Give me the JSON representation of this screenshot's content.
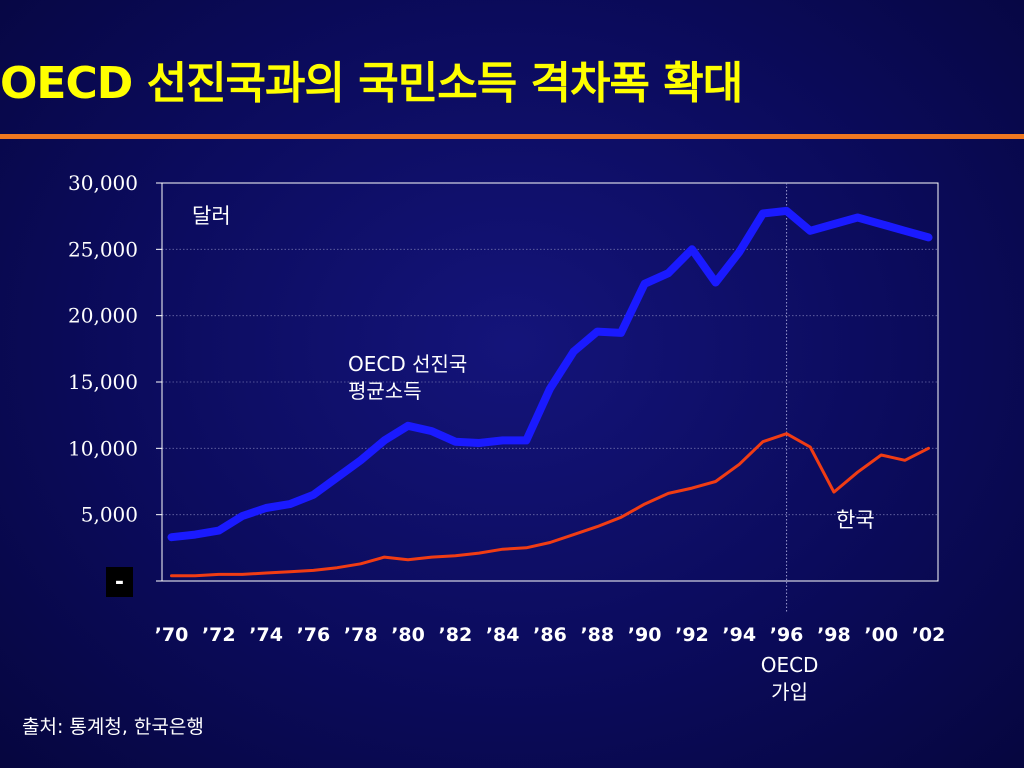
{
  "slide": {
    "title": "OECD 선진국과의 국민소득 격차폭 확대",
    "source": "출처: 통계청, 한국은행",
    "accent_color": "#f07820",
    "title_color": "#ffff00",
    "background_color": "#0b0b5c"
  },
  "chart_data": {
    "type": "line",
    "title": "",
    "xlabel": "",
    "ylabel": "",
    "unit_label": "달러",
    "ylim": [
      0,
      30000
    ],
    "yticks": [
      {
        "value": 30000,
        "label": "30,000"
      },
      {
        "value": 25000,
        "label": "25,000"
      },
      {
        "value": 20000,
        "label": "20,000"
      },
      {
        "value": 15000,
        "label": "15,000"
      },
      {
        "value": 10000,
        "label": "10,000"
      },
      {
        "value": 5000,
        "label": "5,000"
      },
      {
        "value": 0,
        "label": "-"
      }
    ],
    "grid": true,
    "x": [
      1970,
      1971,
      1972,
      1973,
      1974,
      1975,
      1976,
      1977,
      1978,
      1979,
      1980,
      1981,
      1982,
      1983,
      1984,
      1985,
      1986,
      1987,
      1988,
      1989,
      1990,
      1991,
      1992,
      1993,
      1994,
      1995,
      1996,
      1997,
      1998,
      1999,
      2000,
      2001,
      2002
    ],
    "xticks": [
      {
        "value": 1970,
        "label": "’70"
      },
      {
        "value": 1972,
        "label": "’72"
      },
      {
        "value": 1974,
        "label": "’74"
      },
      {
        "value": 1976,
        "label": "’76"
      },
      {
        "value": 1978,
        "label": "’78"
      },
      {
        "value": 1980,
        "label": "’80"
      },
      {
        "value": 1982,
        "label": "’82"
      },
      {
        "value": 1984,
        "label": "’84"
      },
      {
        "value": 1986,
        "label": "’86"
      },
      {
        "value": 1988,
        "label": "’88"
      },
      {
        "value": 1990,
        "label": "’90"
      },
      {
        "value": 1992,
        "label": "’92"
      },
      {
        "value": 1994,
        "label": "’94"
      },
      {
        "value": 1996,
        "label": "’96"
      },
      {
        "value": 1998,
        "label": "’98"
      },
      {
        "value": 2000,
        "label": "’00"
      },
      {
        "value": 2002,
        "label": "’02"
      }
    ],
    "series": [
      {
        "name": "OECD 선진국 평균소득",
        "label_lines": [
          "OECD 선진국",
          "평균소득"
        ],
        "color": "#1a1aff",
        "values": [
          3300,
          3500,
          3800,
          4900,
          5500,
          5800,
          6500,
          7800,
          9100,
          10600,
          11700,
          11300,
          10500,
          10400,
          10600,
          10600,
          14500,
          17300,
          18800,
          18700,
          22400,
          23200,
          25000,
          22500,
          24800,
          27700,
          27900,
          26400,
          26900,
          27400,
          26900,
          26400,
          25900
        ]
      },
      {
        "name": "한국",
        "label_lines": [
          "한국"
        ],
        "color": "#f03c14",
        "values": [
          400,
          400,
          500,
          500,
          600,
          700,
          800,
          1000,
          1300,
          1800,
          1600,
          1800,
          1900,
          2100,
          2400,
          2500,
          2900,
          3500,
          4100,
          4800,
          5800,
          6600,
          7000,
          7500,
          8800,
          10500,
          11100,
          10100,
          6700,
          8200,
          9500,
          9100,
          10000
        ]
      }
    ],
    "annotations": [
      {
        "x": 1996,
        "label_lines": [
          "OECD",
          "가입"
        ]
      }
    ]
  }
}
